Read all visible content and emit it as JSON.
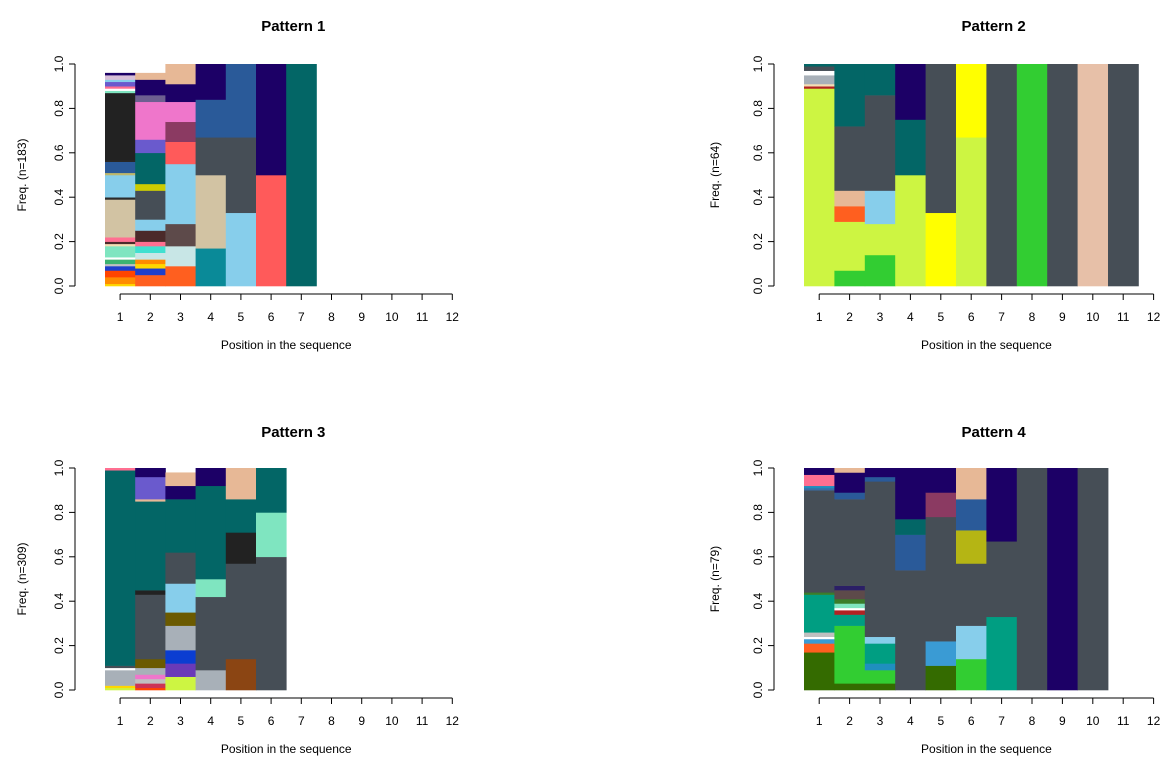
{
  "chart_data": [
    {
      "type": "bar",
      "subtype": "stacked-sequence-frequency",
      "title": "Pattern 1",
      "xlabel": "Position in the sequence",
      "ylabel": "Freq. (n=183)",
      "x_ticks": [
        1,
        2,
        3,
        4,
        5,
        6,
        7,
        8,
        9,
        10,
        11,
        12
      ],
      "y_ticks": [
        0.0,
        0.2,
        0.4,
        0.6,
        0.8,
        1.0
      ],
      "y_tick_labels": [
        "0.0",
        "0.2",
        "0.4",
        "0.6",
        "0.8",
        "1.0"
      ],
      "ylim": [
        0,
        1
      ],
      "grid": false,
      "columns": [
        [
          [
            "#ffd700",
            0.01
          ],
          [
            "#ff8c00",
            0.03
          ],
          [
            "#ff4500",
            0.03
          ],
          [
            "#1e3fcc",
            0.02
          ],
          [
            "#c0c0c0",
            0.01
          ],
          [
            "#3cb371",
            0.02
          ],
          [
            "#ffffff",
            0.01
          ],
          [
            "#7fe5c0",
            0.05
          ],
          [
            "#f5deb3",
            0.01
          ],
          [
            "#4b2a2a",
            0.01
          ],
          [
            "#ff6f91",
            0.02
          ],
          [
            "#d2c3a3",
            0.17
          ],
          [
            "#2b2b2b",
            0.01
          ],
          [
            "#87ceeb",
            0.1
          ],
          [
            "#bdb76b",
            0.01
          ],
          [
            "#2a5a99",
            0.05
          ],
          [
            "#262626",
            0.01
          ],
          [
            "#222222",
            0.3
          ],
          [
            "#7fe5c0",
            0.01
          ],
          [
            "#ffffff",
            0.01
          ],
          [
            "#ff6f91",
            0.01
          ],
          [
            "#6a5acd",
            0.02
          ],
          [
            "#87ceeb",
            0.01
          ],
          [
            "#d8bfd8",
            0.02
          ],
          [
            "#1c0066",
            0.01
          ]
        ],
        [
          [
            "#ff5f1f",
            0.05
          ],
          [
            "#1e3fcc",
            0.03
          ],
          [
            "#ffd700",
            0.02
          ],
          [
            "#ff8c00",
            0.02
          ],
          [
            "#c8e6e6",
            0.03
          ],
          [
            "#40e0d0",
            0.03
          ],
          [
            "#ff6f91",
            0.02
          ],
          [
            "#4b2a2a",
            0.05
          ],
          [
            "#87ceeb",
            0.05
          ],
          [
            "#464e56",
            0.13
          ],
          [
            "#cccc00",
            0.03
          ],
          [
            "#036666",
            0.14
          ],
          [
            "#6a5acd",
            0.06
          ],
          [
            "#ef76cb",
            0.17
          ],
          [
            "#6d5f90",
            0.03
          ],
          [
            "#1c0066",
            0.07
          ],
          [
            "#e7b896",
            0.03
          ]
        ],
        [
          [
            "#ff5f1f",
            0.09
          ],
          [
            "#c8e6e6",
            0.09
          ],
          [
            "#5d4a4a",
            0.1
          ],
          [
            "#87ceeb",
            0.27
          ],
          [
            "#ff5a5a",
            0.1
          ],
          [
            "#8b3a62",
            0.09
          ],
          [
            "#ef76cb",
            0.09
          ],
          [
            "#1c0066",
            0.08
          ],
          [
            "#e7b896",
            0.09
          ]
        ],
        [
          [
            "#0a8a98",
            0.17
          ],
          [
            "#d2c3a3",
            0.33
          ],
          [
            "#464e56",
            0.17
          ],
          [
            "#2a5a99",
            0.17
          ],
          [
            "#1c0066",
            0.16
          ]
        ],
        [
          [
            "#87ceeb",
            0.33
          ],
          [
            "#464e56",
            0.34
          ],
          [
            "#2a5a99",
            0.33
          ]
        ],
        [
          [
            "#ff5a5a",
            0.5
          ],
          [
            "#1c0066",
            0.5
          ]
        ],
        [
          [
            "#036666",
            1.0
          ]
        ],
        [],
        [],
        [],
        [],
        []
      ]
    },
    {
      "type": "bar",
      "subtype": "stacked-sequence-frequency",
      "title": "Pattern 2",
      "xlabel": "Position in the sequence",
      "ylabel": "Freq. (n=64)",
      "x_ticks": [
        1,
        2,
        3,
        4,
        5,
        6,
        7,
        8,
        9,
        10,
        11,
        12
      ],
      "y_ticks": [
        0.0,
        0.2,
        0.4,
        0.6,
        0.8,
        1.0
      ],
      "y_tick_labels": [
        "0.0",
        "0.2",
        "0.4",
        "0.6",
        "0.8",
        "1.0"
      ],
      "ylim": [
        0,
        1
      ],
      "grid": false,
      "columns": [
        [
          [
            "#cdf542",
            0.89
          ],
          [
            "#b22222",
            0.01
          ],
          [
            "#f5deb3",
            0.01
          ],
          [
            "#a8b0b8",
            0.04
          ],
          [
            "#ffffff",
            0.02
          ],
          [
            "#464e56",
            0.02
          ],
          [
            "#036666",
            0.01
          ]
        ],
        [
          [
            "#32cd32",
            0.07
          ],
          [
            "#cdf542",
            0.22
          ],
          [
            "#ff5f1f",
            0.07
          ],
          [
            "#e7b896",
            0.07
          ],
          [
            "#464e56",
            0.29
          ],
          [
            "#036666",
            0.28
          ]
        ],
        [
          [
            "#32cd32",
            0.14
          ],
          [
            "#cdf542",
            0.14
          ],
          [
            "#87ceeb",
            0.15
          ],
          [
            "#464e56",
            0.43
          ],
          [
            "#036666",
            0.14
          ]
        ],
        [
          [
            "#cdf542",
            0.5
          ],
          [
            "#036666",
            0.25
          ],
          [
            "#1c0066",
            0.25
          ]
        ],
        [
          [
            "#ffff00",
            0.33
          ],
          [
            "#464e56",
            0.67
          ]
        ],
        [
          [
            "#cdf542",
            0.67
          ],
          [
            "#ffff00",
            0.33
          ]
        ],
        [
          [
            "#464e56",
            1.0
          ]
        ],
        [
          [
            "#32cd32",
            1.0
          ]
        ],
        [
          [
            "#464e56",
            1.0
          ]
        ],
        [
          [
            "#e7c0a8",
            1.0
          ]
        ],
        [
          [
            "#464e56",
            1.0
          ]
        ],
        []
      ]
    },
    {
      "type": "bar",
      "subtype": "stacked-sequence-frequency",
      "title": "Pattern 3",
      "xlabel": "Position in the sequence",
      "ylabel": "Freq. (n=309)",
      "x_ticks": [
        1,
        2,
        3,
        4,
        5,
        6,
        7,
        8,
        9,
        10,
        11,
        12
      ],
      "y_ticks": [
        0.0,
        0.2,
        0.4,
        0.6,
        0.8,
        1.0
      ],
      "y_tick_labels": [
        "0.0",
        "0.2",
        "0.4",
        "0.6",
        "0.8",
        "1.0"
      ],
      "ylim": [
        0,
        1
      ],
      "grid": false,
      "columns": [
        [
          [
            "#cdf542",
            0.01
          ],
          [
            "#ffd700",
            0.01
          ],
          [
            "#a8b0b8",
            0.07
          ],
          [
            "#ffffff",
            0.01
          ],
          [
            "#464e56",
            0.01
          ],
          [
            "#036666",
            0.88
          ],
          [
            "#ff6f91",
            0.01
          ]
        ],
        [
          [
            "#ff4500",
            0.01
          ],
          [
            "#cc3355",
            0.02
          ],
          [
            "#c0c0c0",
            0.02
          ],
          [
            "#ef76cb",
            0.02
          ],
          [
            "#a8b0b8",
            0.03
          ],
          [
            "#6b5a00",
            0.04
          ],
          [
            "#464e56",
            0.29
          ],
          [
            "#222222",
            0.02
          ],
          [
            "#036666",
            0.4
          ],
          [
            "#e7b896",
            0.01
          ],
          [
            "#6a5acd",
            0.1
          ],
          [
            "#1c0066",
            0.04
          ]
        ],
        [
          [
            "#cdf542",
            0.06
          ],
          [
            "#6a3ab8",
            0.06
          ],
          [
            "#0b3dd1",
            0.06
          ],
          [
            "#a8b0b8",
            0.11
          ],
          [
            "#6b5a00",
            0.06
          ],
          [
            "#87ceeb",
            0.13
          ],
          [
            "#464e56",
            0.14
          ],
          [
            "#036666",
            0.24
          ],
          [
            "#1c0066",
            0.06
          ],
          [
            "#e7b896",
            0.06
          ]
        ],
        [
          [
            "#a8b0b8",
            0.09
          ],
          [
            "#464e56",
            0.33
          ],
          [
            "#7fe5c0",
            0.08
          ],
          [
            "#036666",
            0.42
          ],
          [
            "#1c0066",
            0.08
          ]
        ],
        [
          [
            "#8b4513",
            0.14
          ],
          [
            "#464e56",
            0.43
          ],
          [
            "#222222",
            0.14
          ],
          [
            "#036666",
            0.15
          ],
          [
            "#e7b896",
            0.14
          ]
        ],
        [
          [
            "#464e56",
            0.6
          ],
          [
            "#7fe5c0",
            0.2
          ],
          [
            "#036666",
            0.2
          ]
        ],
        [],
        [],
        [],
        [],
        [],
        []
      ]
    },
    {
      "type": "bar",
      "subtype": "stacked-sequence-frequency",
      "title": "Pattern 4",
      "xlabel": "Position in the sequence",
      "ylabel": "Freq. (n=79)",
      "x_ticks": [
        1,
        2,
        3,
        4,
        5,
        6,
        7,
        8,
        9,
        10,
        11,
        12
      ],
      "y_ticks": [
        0.0,
        0.2,
        0.4,
        0.6,
        0.8,
        1.0
      ],
      "y_tick_labels": [
        "0.0",
        "0.2",
        "0.4",
        "0.6",
        "0.8",
        "1.0"
      ],
      "ylim": [
        0,
        1
      ],
      "grid": false,
      "columns": [
        [
          [
            "#346b00",
            0.17
          ],
          [
            "#ff5f1f",
            0.04
          ],
          [
            "#3a9bd4",
            0.02
          ],
          [
            "#ffffff",
            0.01
          ],
          [
            "#c0c0c0",
            0.02
          ],
          [
            "#009e82",
            0.17
          ],
          [
            "#3a7d2a",
            0.01
          ],
          [
            "#464e56",
            0.46
          ],
          [
            "#3a6ea5",
            0.01
          ],
          [
            "#1f8fbf",
            0.01
          ],
          [
            "#ff6f91",
            0.05
          ],
          [
            "#1c0066",
            0.03
          ]
        ],
        [
          [
            "#346b00",
            0.03
          ],
          [
            "#32cd32",
            0.26
          ],
          [
            "#009e82",
            0.05
          ],
          [
            "#b22222",
            0.02
          ],
          [
            "#ffffff",
            0.01
          ],
          [
            "#7fe5c0",
            0.02
          ],
          [
            "#3a7d2a",
            0.02
          ],
          [
            "#5d4a4a",
            0.04
          ],
          [
            "#2b1f66",
            0.02
          ],
          [
            "#464e56",
            0.39
          ],
          [
            "#2a5a99",
            0.03
          ],
          [
            "#1c0066",
            0.09
          ],
          [
            "#e7b896",
            0.02
          ]
        ],
        [
          [
            "#346b00",
            0.03
          ],
          [
            "#32cd32",
            0.06
          ],
          [
            "#1f8fbf",
            0.03
          ],
          [
            "#009e82",
            0.09
          ],
          [
            "#87ceeb",
            0.03
          ],
          [
            "#464e56",
            0.7
          ],
          [
            "#2a5a99",
            0.02
          ],
          [
            "#1c0066",
            0.04
          ]
        ],
        [
          [
            "#464e56",
            0.54
          ],
          [
            "#2a5a99",
            0.16
          ],
          [
            "#036666",
            0.07
          ],
          [
            "#1c0066",
            0.23
          ]
        ],
        [
          [
            "#346b00",
            0.11
          ],
          [
            "#3a9bd4",
            0.11
          ],
          [
            "#464e56",
            0.56
          ],
          [
            "#8b3a62",
            0.11
          ],
          [
            "#1c0066",
            0.11
          ]
        ],
        [
          [
            "#32cd32",
            0.14
          ],
          [
            "#87ceeb",
            0.15
          ],
          [
            "#464e56",
            0.28
          ],
          [
            "#b5b514",
            0.15
          ],
          [
            "#2a5a99",
            0.14
          ],
          [
            "#e7b896",
            0.14
          ]
        ],
        [
          [
            "#009e82",
            0.33
          ],
          [
            "#464e56",
            0.34
          ],
          [
            "#1c0066",
            0.33
          ]
        ],
        [
          [
            "#464e56",
            1.0
          ]
        ],
        [
          [
            "#1c0066",
            1.0
          ]
        ],
        [
          [
            "#464e56",
            1.0
          ]
        ],
        [],
        []
      ]
    }
  ]
}
